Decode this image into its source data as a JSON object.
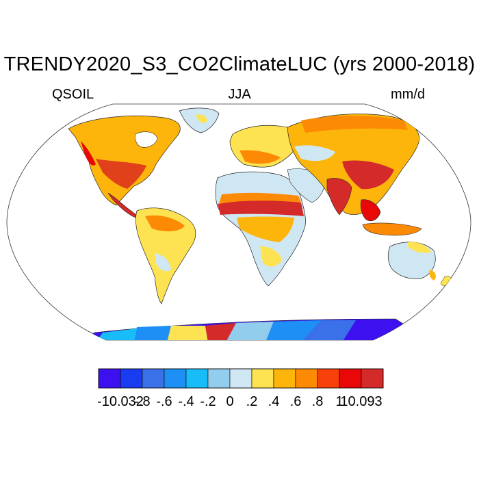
{
  "title": "TRENDY2020_S3_CO2ClimateLUC (yrs 2000-2018)",
  "variable": "QSOIL",
  "season": "JJA",
  "units": "mm/d",
  "colorbar": {
    "labels": [
      "-10.032",
      "-.8",
      "-.6",
      "-.4",
      "-.2",
      "0",
      ".2",
      ".4",
      ".6",
      ".8",
      "1",
      "10.093"
    ],
    "colors": [
      "#3d10f0",
      "#1a3cf0",
      "#3a70e8",
      "#1e90f5",
      "#18bdf8",
      "#93cdee",
      "#cfe7f3",
      "#fde352",
      "#fdb50c",
      "#fd8a05",
      "#f8400a",
      "#e80808",
      "#d42a2a"
    ]
  },
  "map_colors": {
    "outline": "#222222",
    "ocean": "#ffffff"
  }
}
